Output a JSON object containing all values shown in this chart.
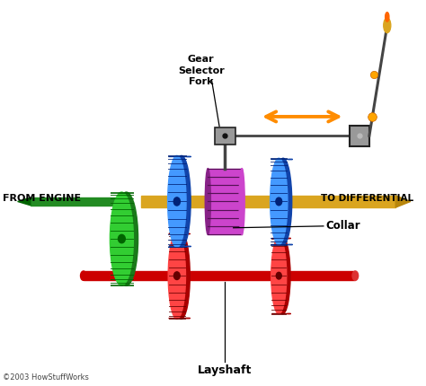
{
  "bg_color": "#ffffff",
  "labels": {
    "from_engine": "FROM ENGINE",
    "to_differential": "TO DIFFERENTIAL",
    "gear_selector_fork": "Gear\nSelector\nFork",
    "collar": "Collar",
    "layshaft": "Layshaft",
    "copyright": "©2003 HowStuffWorks"
  },
  "colors": {
    "green_shaft": "#228B22",
    "green_gear_main": "#32CD32",
    "green_gear_teeth": "#006400",
    "green_gear_side": "#1A7A1A",
    "red_shaft": "#CC0000",
    "red_gear_main": "#FF4444",
    "red_gear_side": "#AA0000",
    "red_teeth": "#660000",
    "blue_gear_main": "#4499FF",
    "blue_gear_side": "#1144AA",
    "blue_teeth": "#002277",
    "gold_shaft": "#DAA520",
    "gold_shaft_tip": "#B8860B",
    "purple_collar_main": "#CC44CC",
    "purple_collar_side": "#882288",
    "purple_teeth": "#551155",
    "gray_fork_block": "#999999",
    "gray_fork_bar": "#444444",
    "orange_arrow": "#FF8C00",
    "stick_tip_gold": "#DAA520",
    "stick_tip_flame": "#FF6600",
    "stick_ball": "#FFA500",
    "text_color": "#000000",
    "copyright_color": "#444444"
  },
  "layout": {
    "xlim": [
      0,
      10
    ],
    "ylim": [
      0,
      9
    ],
    "figsize": [
      4.74,
      4.3
    ],
    "dpi": 100
  }
}
